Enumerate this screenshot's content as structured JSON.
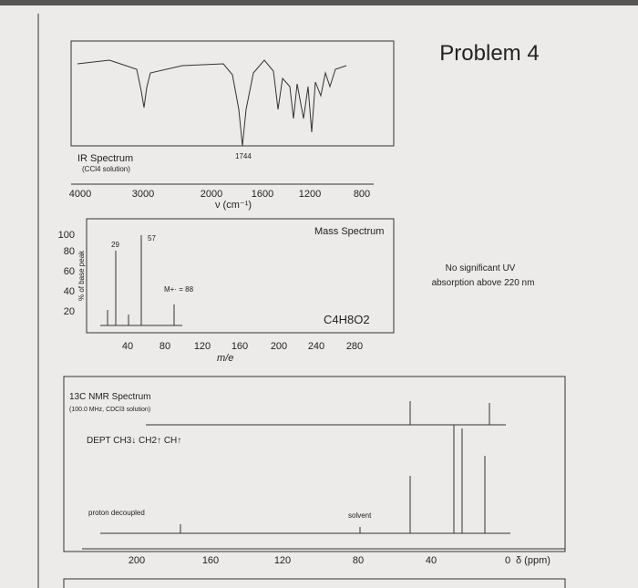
{
  "header": {
    "title": "Problem 4"
  },
  "ir": {
    "title": "IR Spectrum",
    "subtitle": "(CCl4 solution)",
    "peak_label": "1744",
    "axis_label": "ν (cm⁻¹)",
    "ticks": [
      "4000",
      "3000",
      "2000",
      "1600",
      "1200",
      "800"
    ]
  },
  "mass": {
    "title": "Mass Spectrum",
    "y_axis_label": "% of base peak",
    "yticks": [
      "100",
      "80",
      "60",
      "40",
      "20"
    ],
    "xticks": [
      "40",
      "80",
      "120",
      "160",
      "200",
      "240",
      "280"
    ],
    "x_axis_label": "m/e",
    "peak_labels": [
      "29",
      "57",
      "M+· = 88"
    ],
    "formula": "C4H8O2"
  },
  "uv": {
    "line1": "No significant UV",
    "line2": "absorption above 220 nm"
  },
  "nmr": {
    "title": "13C NMR Spectrum",
    "subtitle": "(100.0 MHz, CDCl3 solution)",
    "dept": "DEPT   CH3↓ CH2↑ CH↑",
    "proton": "proton decoupled",
    "solvent": "solvent",
    "xticks": [
      "200",
      "160",
      "120",
      "80",
      "40",
      "0"
    ],
    "axis_label": "δ (ppm)"
  }
}
